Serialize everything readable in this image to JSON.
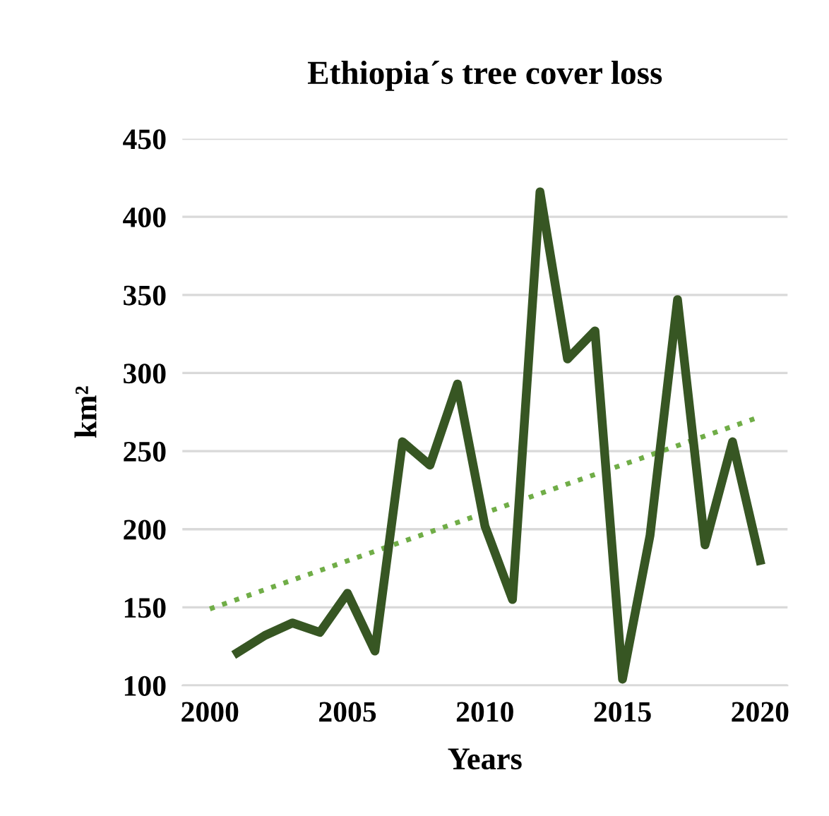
{
  "chart_data": {
    "type": "line",
    "title": "Ethiopia´s tree cover loss",
    "xlabel": "Years",
    "ylabel": "km²",
    "x": [
      2001,
      2002,
      2003,
      2004,
      2005,
      2006,
      2007,
      2008,
      2009,
      2010,
      2011,
      2012,
      2013,
      2014,
      2015,
      2016,
      2017,
      2018,
      2019,
      2020
    ],
    "series": [
      {
        "color": "#375623",
        "values": [
          121,
          132,
          140,
          134,
          159,
          122,
          256,
          241,
          293,
          202,
          155,
          416,
          309,
          327,
          104,
          196,
          347,
          190,
          256,
          180
        ]
      },
      {
        "type": "line",
        "x": [
          2000,
          2020
        ],
        "color": "#70ad47",
        "line_style": "dotted",
        "values": [
          149,
          272
        ]
      }
    ],
    "xlim": [
      1999,
      2021
    ],
    "xticks": [
      2000,
      2005,
      2010,
      2015,
      2020
    ],
    "ylim": [
      100,
      450
    ],
    "yticks": [
      100,
      150,
      200,
      250,
      300,
      350,
      400,
      450
    ],
    "grid": "y",
    "marker": "none",
    "line_style": "solid"
  }
}
